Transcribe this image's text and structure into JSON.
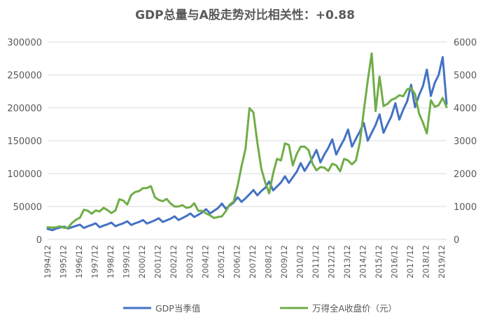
{
  "chart_data": {
    "type": "line",
    "title": "GDP总量与A股走势对比相关性：+0.88",
    "xlabel": "",
    "ylabel": "",
    "y_left_ticks": [
      "0",
      "50000",
      "100000",
      "150000",
      "200000",
      "250000",
      "300000"
    ],
    "y_right_ticks": [
      "0",
      "1000",
      "2000",
      "3000",
      "4000",
      "5000",
      "6000"
    ],
    "ylim_left": [
      0,
      300000
    ],
    "ylim_right": [
      0,
      6000
    ],
    "x_tick_labels": [
      "1994/12",
      "1995/12",
      "1996/12",
      "1997/12",
      "1998/12",
      "1999/12",
      "2000/12",
      "2001/12",
      "2002/12",
      "2003/12",
      "2004/12",
      "2005/12",
      "2006/12",
      "2007/12",
      "2008/12",
      "2009/12",
      "2010/12",
      "2011/12",
      "2012/12",
      "2013/12",
      "2014/12",
      "2015/12",
      "2016/12",
      "2017/12",
      "2018/12",
      "2019/12"
    ],
    "grid": true,
    "legend_position": "bottom",
    "series": [
      {
        "name": "GDP当季值",
        "axis": "left",
        "color": "#4472c4",
        "points": [
          [
            1994.9,
            16000
          ],
          [
            1995.2,
            14000
          ],
          [
            1995.45,
            16500
          ],
          [
            1995.7,
            18000
          ],
          [
            1995.95,
            19500
          ],
          [
            1996.2,
            16500
          ],
          [
            1996.45,
            18500
          ],
          [
            1996.7,
            20500
          ],
          [
            1996.95,
            22500
          ],
          [
            1997.2,
            17500
          ],
          [
            1997.45,
            20000
          ],
          [
            1997.7,
            22000
          ],
          [
            1997.95,
            24500
          ],
          [
            1998.2,
            18500
          ],
          [
            1998.45,
            21000
          ],
          [
            1998.7,
            23000
          ],
          [
            1998.95,
            25500
          ],
          [
            1999.2,
            20000
          ],
          [
            1999.45,
            22500
          ],
          [
            1999.7,
            24500
          ],
          [
            1999.95,
            27500
          ],
          [
            2000.2,
            22000
          ],
          [
            2000.45,
            24500
          ],
          [
            2000.7,
            26500
          ],
          [
            2000.95,
            29500
          ],
          [
            2001.2,
            24000
          ],
          [
            2001.45,
            26500
          ],
          [
            2001.7,
            29000
          ],
          [
            2001.95,
            32000
          ],
          [
            2002.2,
            26500
          ],
          [
            2002.45,
            29000
          ],
          [
            2002.7,
            31500
          ],
          [
            2002.95,
            35000
          ],
          [
            2003.2,
            29500
          ],
          [
            2003.45,
            32500
          ],
          [
            2003.7,
            35500
          ],
          [
            2003.95,
            39500
          ],
          [
            2004.2,
            34000
          ],
          [
            2004.45,
            37500
          ],
          [
            2004.7,
            41000
          ],
          [
            2004.95,
            46000
          ],
          [
            2005.2,
            39500
          ],
          [
            2005.45,
            43500
          ],
          [
            2005.7,
            47500
          ],
          [
            2005.95,
            54500
          ],
          [
            2006.2,
            46500
          ],
          [
            2006.45,
            51500
          ],
          [
            2006.7,
            56000
          ],
          [
            2006.95,
            64000
          ],
          [
            2007.2,
            57000
          ],
          [
            2007.45,
            62500
          ],
          [
            2007.7,
            68500
          ],
          [
            2007.95,
            75000
          ],
          [
            2008.2,
            67000
          ],
          [
            2008.45,
            73500
          ],
          [
            2008.7,
            78500
          ],
          [
            2008.95,
            88000
          ],
          [
            2009.2,
            74500
          ],
          [
            2009.45,
            80500
          ],
          [
            2009.7,
            86500
          ],
          [
            2009.95,
            96000
          ],
          [
            2010.2,
            86000
          ],
          [
            2010.45,
            94500
          ],
          [
            2010.7,
            103000
          ],
          [
            2010.95,
            116000
          ],
          [
            2011.2,
            104000
          ],
          [
            2011.45,
            114000
          ],
          [
            2011.7,
            124000
          ],
          [
            2011.95,
            136000
          ],
          [
            2012.2,
            117000
          ],
          [
            2012.45,
            129000
          ],
          [
            2012.7,
            139000
          ],
          [
            2012.95,
            152000
          ],
          [
            2013.2,
            129000
          ],
          [
            2013.45,
            141000
          ],
          [
            2013.7,
            152000
          ],
          [
            2013.95,
            167000
          ],
          [
            2014.2,
            141000
          ],
          [
            2014.45,
            153000
          ],
          [
            2014.7,
            164000
          ],
          [
            2014.95,
            177000
          ],
          [
            2015.2,
            150000
          ],
          [
            2015.45,
            162000
          ],
          [
            2015.7,
            174000
          ],
          [
            2015.95,
            190000
          ],
          [
            2016.2,
            162000
          ],
          [
            2016.45,
            175000
          ],
          [
            2016.7,
            187000
          ],
          [
            2016.95,
            207000
          ],
          [
            2017.2,
            182000
          ],
          [
            2017.45,
            197000
          ],
          [
            2017.7,
            210000
          ],
          [
            2017.95,
            235000
          ],
          [
            2018.2,
            201000
          ],
          [
            2018.45,
            219000
          ],
          [
            2018.7,
            233000
          ],
          [
            2018.95,
            258000
          ],
          [
            2019.2,
            218000
          ],
          [
            2019.45,
            238000
          ],
          [
            2019.7,
            250000
          ],
          [
            2019.95,
            277000
          ],
          [
            2020.2,
            206000
          ]
        ]
      },
      {
        "name": "万得全A收盘价（元）",
        "axis": "right",
        "color": "#70ad47",
        "points": [
          [
            1994.9,
            370
          ],
          [
            1995.2,
            360
          ],
          [
            1995.45,
            370
          ],
          [
            1995.7,
            400
          ],
          [
            1995.95,
            350
          ],
          [
            1996.2,
            360
          ],
          [
            1996.45,
            500
          ],
          [
            1996.7,
            600
          ],
          [
            1996.95,
            660
          ],
          [
            1997.2,
            900
          ],
          [
            1997.45,
            870
          ],
          [
            1997.7,
            780
          ],
          [
            1997.95,
            880
          ],
          [
            1998.2,
            850
          ],
          [
            1998.45,
            960
          ],
          [
            1998.7,
            890
          ],
          [
            1998.95,
            800
          ],
          [
            1999.2,
            880
          ],
          [
            1999.45,
            1220
          ],
          [
            1999.7,
            1180
          ],
          [
            1999.95,
            1060
          ],
          [
            2000.2,
            1350
          ],
          [
            2000.45,
            1440
          ],
          [
            2000.7,
            1470
          ],
          [
            2000.95,
            1560
          ],
          [
            2001.2,
            1560
          ],
          [
            2001.45,
            1620
          ],
          [
            2001.7,
            1280
          ],
          [
            2001.95,
            1200
          ],
          [
            2002.2,
            1160
          ],
          [
            2002.45,
            1230
          ],
          [
            2002.7,
            1090
          ],
          [
            2002.95,
            1000
          ],
          [
            2003.2,
            1000
          ],
          [
            2003.45,
            1040
          ],
          [
            2003.7,
            960
          ],
          [
            2003.95,
            980
          ],
          [
            2004.2,
            1100
          ],
          [
            2004.45,
            870
          ],
          [
            2004.7,
            870
          ],
          [
            2004.95,
            790
          ],
          [
            2005.2,
            730
          ],
          [
            2005.45,
            650
          ],
          [
            2005.7,
            680
          ],
          [
            2005.95,
            700
          ],
          [
            2006.2,
            860
          ],
          [
            2006.45,
            1060
          ],
          [
            2006.7,
            1150
          ],
          [
            2006.95,
            1630
          ],
          [
            2007.2,
            2230
          ],
          [
            2007.45,
            2750
          ],
          [
            2007.7,
            3990
          ],
          [
            2007.95,
            3860
          ],
          [
            2008.2,
            2950
          ],
          [
            2008.45,
            2150
          ],
          [
            2008.7,
            1730
          ],
          [
            2008.95,
            1400
          ],
          [
            2009.2,
            2010
          ],
          [
            2009.45,
            2450
          ],
          [
            2009.7,
            2400
          ],
          [
            2009.95,
            2920
          ],
          [
            2010.2,
            2870
          ],
          [
            2010.45,
            2250
          ],
          [
            2010.7,
            2600
          ],
          [
            2010.95,
            2820
          ],
          [
            2011.2,
            2820
          ],
          [
            2011.45,
            2710
          ],
          [
            2011.7,
            2300
          ],
          [
            2011.95,
            2100
          ],
          [
            2012.2,
            2200
          ],
          [
            2012.45,
            2180
          ],
          [
            2012.7,
            2080
          ],
          [
            2012.95,
            2300
          ],
          [
            2013.2,
            2250
          ],
          [
            2013.45,
            2070
          ],
          [
            2013.7,
            2450
          ],
          [
            2013.95,
            2400
          ],
          [
            2014.2,
            2280
          ],
          [
            2014.45,
            2400
          ],
          [
            2014.7,
            2950
          ],
          [
            2014.95,
            3900
          ],
          [
            2015.2,
            4830
          ],
          [
            2015.45,
            5650
          ],
          [
            2015.7,
            3900
          ],
          [
            2015.95,
            4950
          ],
          [
            2016.2,
            4050
          ],
          [
            2016.45,
            4120
          ],
          [
            2016.7,
            4240
          ],
          [
            2016.95,
            4290
          ],
          [
            2017.2,
            4380
          ],
          [
            2017.45,
            4350
          ],
          [
            2017.7,
            4560
          ],
          [
            2017.95,
            4600
          ],
          [
            2018.2,
            4420
          ],
          [
            2018.45,
            3830
          ],
          [
            2018.7,
            3550
          ],
          [
            2018.95,
            3220
          ],
          [
            2019.2,
            4230
          ],
          [
            2019.45,
            4030
          ],
          [
            2019.7,
            4080
          ],
          [
            2019.95,
            4300
          ],
          [
            2020.2,
            4020
          ]
        ]
      }
    ]
  }
}
